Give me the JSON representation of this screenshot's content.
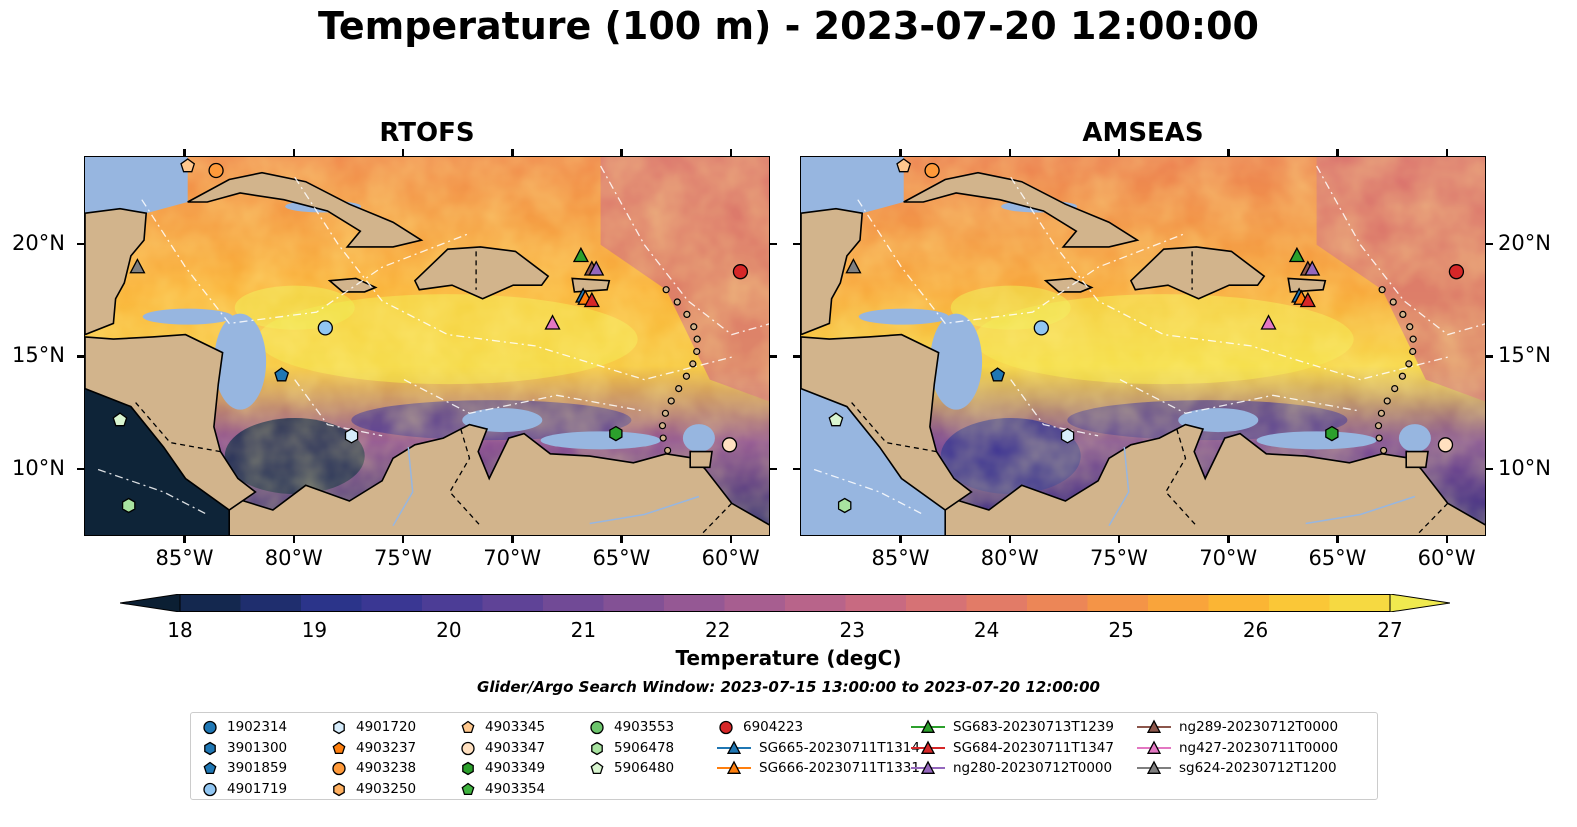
{
  "title": "Temperature (100 m) - 2023-07-20 12:00:00",
  "panels": [
    {
      "title": "RTOFS"
    },
    {
      "title": "AMSEAS"
    }
  ],
  "axes": {
    "lon_ticks": [
      "85°W",
      "80°W",
      "75°W",
      "70°W",
      "65°W",
      "60°W"
    ],
    "lat_ticks": [
      "20°N",
      "15°N",
      "10°N"
    ]
  },
  "colorbar": {
    "label": "Temperature (degC)",
    "ticks": [
      "18",
      "19",
      "20",
      "21",
      "22",
      "23",
      "24",
      "25",
      "26",
      "27"
    ],
    "range": [
      18,
      27
    ],
    "colors": [
      "#0b1f33",
      "#14284f",
      "#1f2e6e",
      "#2b348a",
      "#3a3793",
      "#4c3d96",
      "#5f4397",
      "#714a96",
      "#835195",
      "#955894",
      "#a75e90",
      "#b8648a",
      "#c86a81",
      "#d67275",
      "#e27b67",
      "#ec8657",
      "#f49447",
      "#f9a43b",
      "#fbb534",
      "#fac737",
      "#f6d941",
      "#f0ea4f"
    ]
  },
  "search_window": "Glider/Argo Search Window: 2023-07-15 13:00:00 to 2023-07-20 12:00:00",
  "colors": {
    "land": "#d2b48c",
    "shallow_water": "#97b6e0"
  },
  "legend": [
    {
      "label": "1902314",
      "marker": "circle",
      "color": "#1f77b4"
    },
    {
      "label": "3901300",
      "marker": "hexagon",
      "color": "#1f77b4"
    },
    {
      "label": "3901859",
      "marker": "pentagon",
      "color": "#1f77b4"
    },
    {
      "label": "4901719",
      "marker": "circle",
      "color": "#91c6f2"
    },
    {
      "label": "4901720",
      "marker": "hexagon",
      "color": "#d6ecfb"
    },
    {
      "label": "4903237",
      "marker": "pentagon",
      "color": "#ff7f0e"
    },
    {
      "label": "4903238",
      "marker": "circle",
      "color": "#ff9a3a"
    },
    {
      "label": "4903250",
      "marker": "hexagon",
      "color": "#ffb060"
    },
    {
      "label": "4903345",
      "marker": "pentagon",
      "color": "#ffc88e"
    },
    {
      "label": "4903347",
      "marker": "circle",
      "color": "#ffe0c0"
    },
    {
      "label": "4903349",
      "marker": "hexagon",
      "color": "#2ca02c"
    },
    {
      "label": "4903354",
      "marker": "pentagon",
      "color": "#3fb33f"
    },
    {
      "label": "4903553",
      "marker": "circle",
      "color": "#6cc56c"
    },
    {
      "label": "5906478",
      "marker": "hexagon",
      "color": "#a8e3a0"
    },
    {
      "label": "5906480",
      "marker": "pentagon",
      "color": "#d9f5d0"
    },
    {
      "label": "6904223",
      "marker": "circle",
      "color": "#d62728"
    },
    {
      "label": "SG665-20230711T1314",
      "marker": "triangle-line",
      "color": "#1f77b4"
    },
    {
      "label": "SG666-20230711T1331",
      "marker": "triangle-line",
      "color": "#ff7f0e"
    },
    {
      "label": "SG683-20230713T1239",
      "marker": "triangle-line",
      "color": "#2ca02c"
    },
    {
      "label": "SG684-20230711T1347",
      "marker": "triangle-line",
      "color": "#d62728"
    },
    {
      "label": "ng280-20230712T0000",
      "marker": "triangle-line",
      "color": "#9467bd"
    },
    {
      "label": "ng289-20230712T0000",
      "marker": "triangle-line",
      "color": "#8c564b"
    },
    {
      "label": "ng427-20230711T0000",
      "marker": "triangle-line",
      "color": "#e377c2"
    },
    {
      "label": "sg624-20230712T1200",
      "marker": "triangle-line",
      "color": "#7f7f7f"
    }
  ],
  "map_markers": [
    {
      "name": "sg624-20230712T1200",
      "lon": -87.2,
      "lat": 19.0
    },
    {
      "name": "4903238",
      "lon": -83.6,
      "lat": 23.3
    },
    {
      "name": "4903345",
      "lon": -84.9,
      "lat": 23.5
    },
    {
      "name": "4901719",
      "lon": -78.6,
      "lat": 16.3
    },
    {
      "name": "3901859",
      "lon": -80.6,
      "lat": 14.2
    },
    {
      "name": "4901720",
      "lon": -77.4,
      "lat": 11.5
    },
    {
      "name": "5906480",
      "lon": -88.0,
      "lat": 12.2
    },
    {
      "name": "5906478",
      "lon": -87.6,
      "lat": 8.4
    },
    {
      "name": "SG683-20230713T1239",
      "lon": -66.9,
      "lat": 19.5
    },
    {
      "name": "ng289-20230712T0000",
      "lon": -66.4,
      "lat": 18.9
    },
    {
      "name": "ng280-20230712T0000",
      "lon": -66.2,
      "lat": 18.9
    },
    {
      "name": "SG665-20230711T1314",
      "lon": -66.8,
      "lat": 17.7
    },
    {
      "name": "SG666-20230711T1331",
      "lon": -66.7,
      "lat": 17.6
    },
    {
      "name": "SG684-20230711T1347",
      "lon": -66.4,
      "lat": 17.5
    },
    {
      "name": "ng427-20230711T0000",
      "lon": -68.2,
      "lat": 16.5
    },
    {
      "name": "6904223",
      "lon": -59.6,
      "lat": 18.8
    },
    {
      "name": "4903349",
      "lon": -65.3,
      "lat": 11.6
    },
    {
      "name": "4903347",
      "lon": -60.1,
      "lat": 11.1
    }
  ]
}
